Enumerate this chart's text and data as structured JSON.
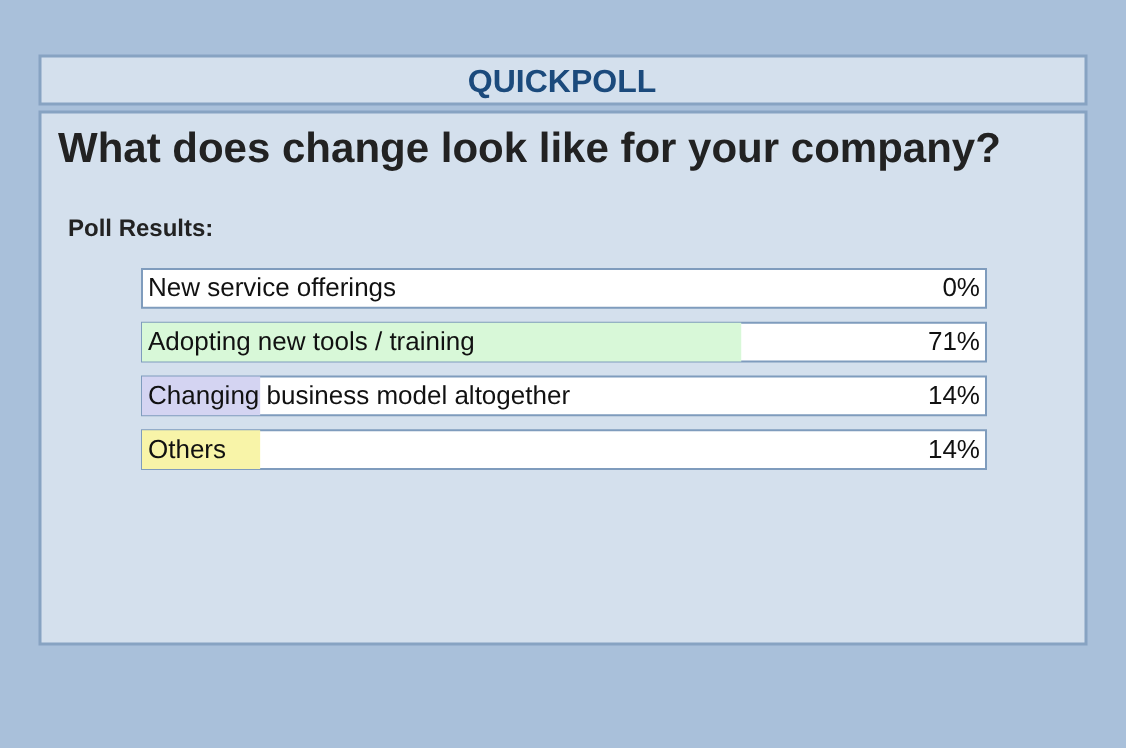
{
  "chart_data": {
    "type": "bar",
    "orientation": "horizontal",
    "title": "QUICKPOLL",
    "subtitle": "What does change look like for your company?",
    "annotations": [
      "Poll Results:"
    ],
    "categories": [
      "New service offerings",
      "Adopting new tools / training",
      "Changing business model altogether",
      "Others"
    ],
    "values": [
      0,
      71,
      14,
      14
    ],
    "colors": [
      "#d8d8f4",
      "#d8f8d8",
      "#d4d4f2",
      "#f8f4a8"
    ],
    "value_labels": [
      "0%",
      "71%",
      "14%",
      "14%"
    ],
    "xlim": [
      0,
      100
    ],
    "tick_labels": false
  }
}
